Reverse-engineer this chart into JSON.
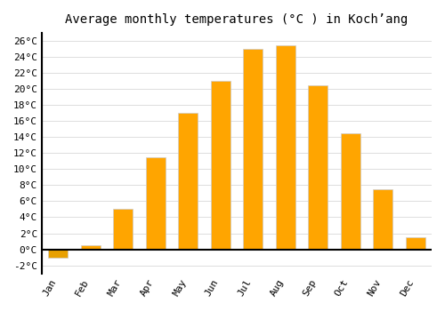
{
  "title": "Average monthly temperatures (°C ) in Koch’ang",
  "months": [
    "Jan",
    "Feb",
    "Mar",
    "Apr",
    "May",
    "Jun",
    "Jul",
    "Aug",
    "Sep",
    "Oct",
    "Nov",
    "Dec"
  ],
  "values": [
    -1.0,
    0.5,
    5.0,
    11.5,
    17.0,
    21.0,
    25.0,
    25.5,
    20.5,
    14.5,
    7.5,
    1.5
  ],
  "bar_color": "#FFA500",
  "neg_bar_color": "#E8A000",
  "background_color": "#FFFFFF",
  "plot_bg_color": "#FFFFFF",
  "grid_color": "#DDDDDD",
  "ylim": [
    -3,
    27
  ],
  "yticks": [
    -2,
    0,
    2,
    4,
    6,
    8,
    10,
    12,
    14,
    16,
    18,
    20,
    22,
    24,
    26
  ],
  "title_fontsize": 10,
  "tick_fontsize": 8,
  "font_family": "monospace"
}
